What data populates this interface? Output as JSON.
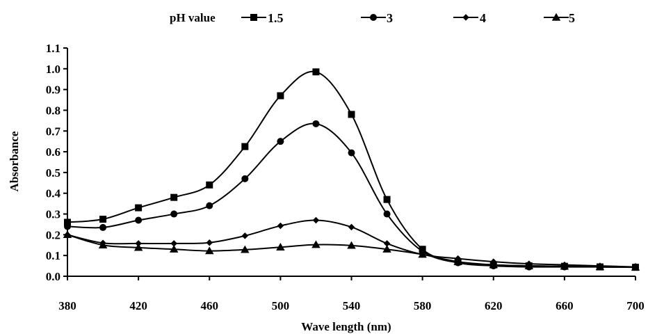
{
  "chart_data": {
    "type": "line",
    "title": "",
    "xlabel": "Wave length (nm)",
    "ylabel": "Absorbance",
    "xlim": [
      380,
      700
    ],
    "ylim": [
      0,
      1.1
    ],
    "x_ticks": [
      "380",
      "420",
      "460",
      "500",
      "540",
      "580",
      "620",
      "660",
      "700"
    ],
    "y_ticks": [
      "0.0",
      "0.1",
      "0.2",
      "0.3",
      "0.4",
      "0.5",
      "0.6",
      "0.7",
      "0.8",
      "0.9",
      "1.0",
      "1.1"
    ],
    "grid": false,
    "legend_title": "pH value",
    "legend_position": "top",
    "x": [
      380,
      400,
      420,
      440,
      460,
      480,
      500,
      520,
      540,
      560,
      580,
      600,
      620,
      640,
      660,
      680,
      700
    ],
    "series": [
      {
        "name": "1.5",
        "marker": "square",
        "color": "#000000",
        "values": [
          0.26,
          0.275,
          0.33,
          0.38,
          0.44,
          0.625,
          0.87,
          0.985,
          0.78,
          0.37,
          0.13,
          0.07,
          0.055,
          0.05,
          0.048,
          0.045,
          0.043
        ]
      },
      {
        "name": "3",
        "marker": "circle",
        "color": "#000000",
        "values": [
          0.24,
          0.235,
          0.27,
          0.3,
          0.34,
          0.47,
          0.65,
          0.735,
          0.595,
          0.3,
          0.12,
          0.065,
          0.05,
          0.045,
          0.045,
          0.045,
          0.045
        ]
      },
      {
        "name": "4",
        "marker": "diamond",
        "color": "#000000",
        "values": [
          0.2,
          0.16,
          0.158,
          0.158,
          0.162,
          0.195,
          0.243,
          0.27,
          0.237,
          0.158,
          0.105,
          0.085,
          0.07,
          0.06,
          0.055,
          0.05,
          0.045
        ]
      },
      {
        "name": "5",
        "marker": "triangle",
        "color": "#000000",
        "values": [
          0.2,
          0.15,
          0.138,
          0.13,
          0.122,
          0.128,
          0.14,
          0.152,
          0.148,
          0.13,
          0.105,
          0.07,
          0.055,
          0.05,
          0.048,
          0.045,
          0.043
        ]
      }
    ]
  }
}
